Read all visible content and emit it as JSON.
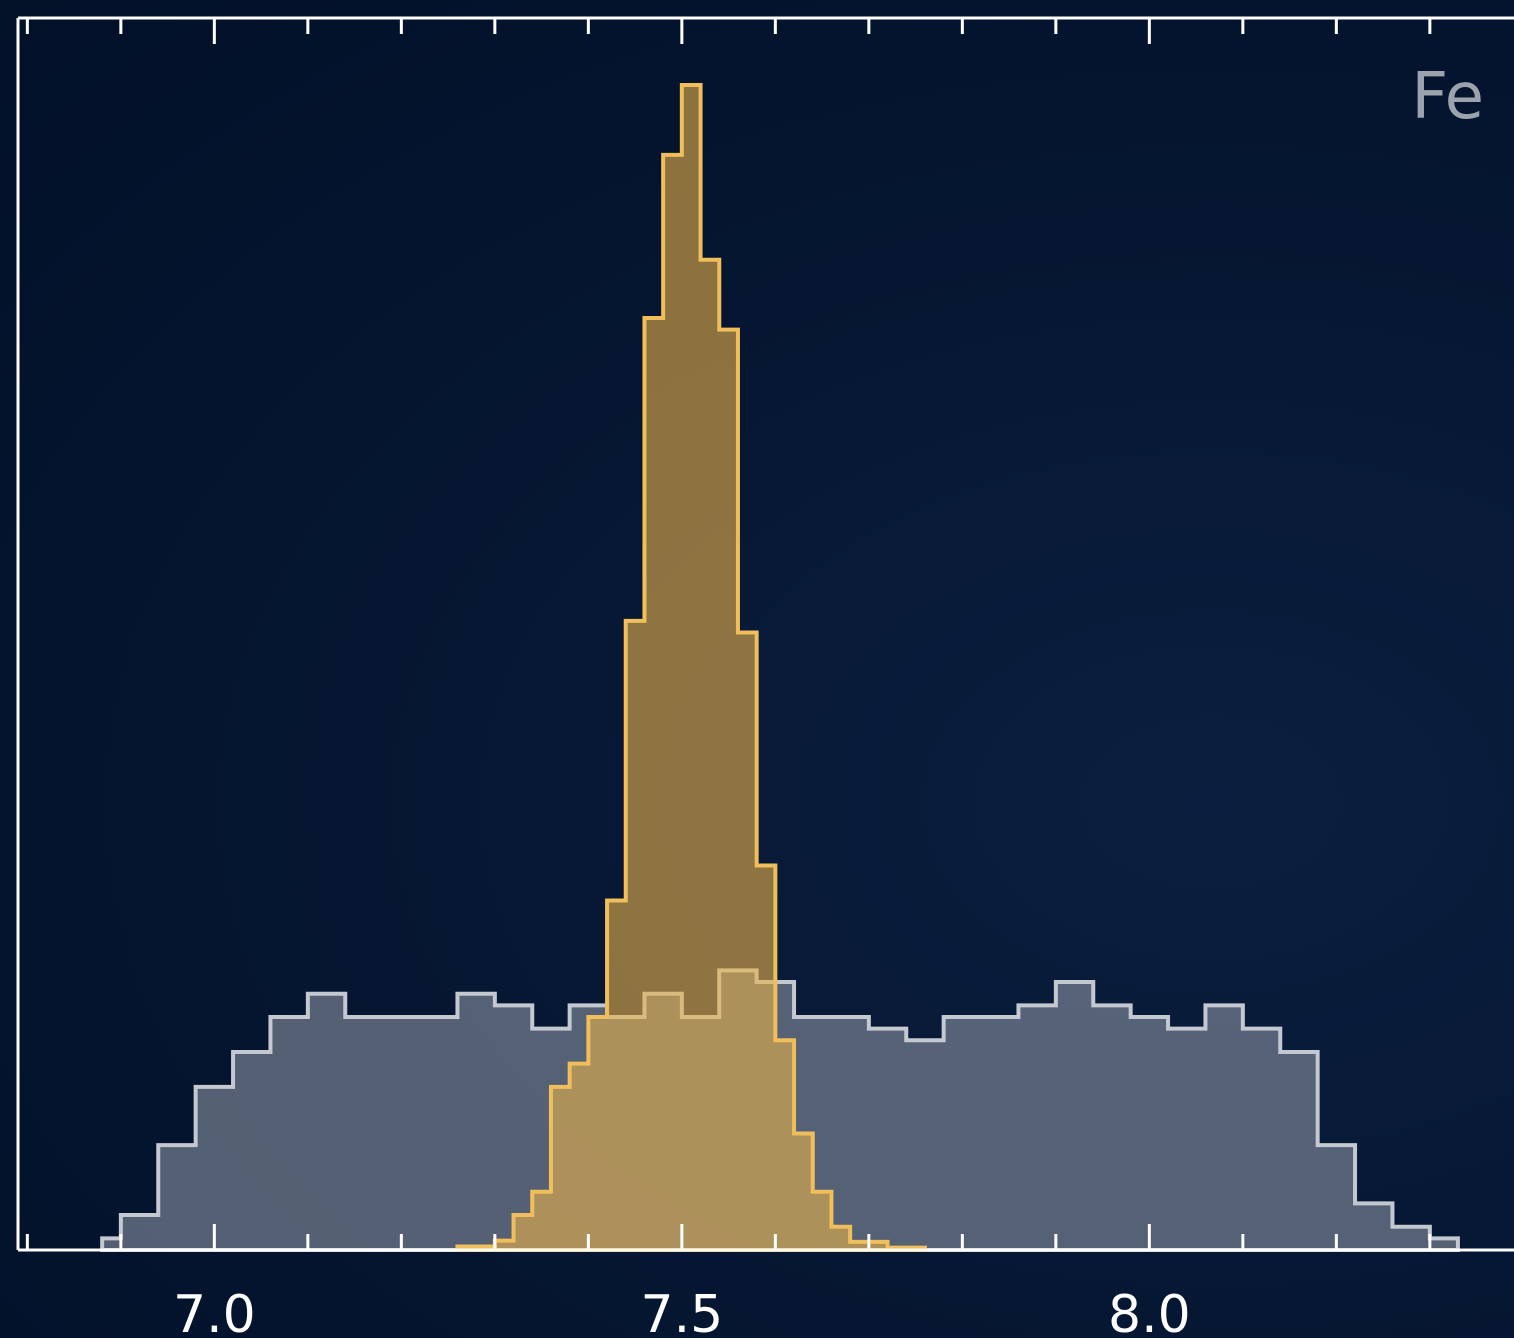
{
  "chart_data": {
    "type": "histogram",
    "title": "",
    "xlabel": "",
    "ylabel": "",
    "annotation": "Fe",
    "x_ticks": [
      "7.0",
      "7.5",
      "8.0"
    ],
    "xlim": [
      6.79,
      8.39
    ],
    "ylim": [
      0,
      1.0
    ],
    "grid": false,
    "legend": "none",
    "series": [
      {
        "fill_color": "#8a92a1",
        "edge_color": "#c4c8d0",
        "bin_edges": [
          6.88,
          6.9,
          6.94,
          6.98,
          7.02,
          7.06,
          7.1,
          7.14,
          7.18,
          7.22,
          7.26,
          7.3,
          7.34,
          7.38,
          7.42,
          7.46,
          7.5,
          7.54,
          7.58,
          7.62,
          7.66,
          7.7,
          7.74,
          7.78,
          7.82,
          7.86,
          7.9,
          7.94,
          7.98,
          8.02,
          8.06,
          8.1,
          8.14,
          8.18,
          8.22,
          8.26,
          8.3,
          8.33
        ],
        "counts": [
          0.01,
          0.03,
          0.09,
          0.14,
          0.17,
          0.2,
          0.22,
          0.2,
          0.2,
          0.2,
          0.22,
          0.21,
          0.19,
          0.21,
          0.2,
          0.22,
          0.2,
          0.24,
          0.23,
          0.2,
          0.2,
          0.19,
          0.18,
          0.2,
          0.2,
          0.21,
          0.23,
          0.21,
          0.2,
          0.19,
          0.21,
          0.19,
          0.17,
          0.09,
          0.04,
          0.02,
          0.01
        ]
      },
      {
        "fill_color": "#e8b04a",
        "edge_color": "#f0be5a",
        "bin_edges": [
          7.26,
          7.3,
          7.32,
          7.34,
          7.36,
          7.38,
          7.4,
          7.42,
          7.44,
          7.46,
          7.48,
          7.5,
          7.52,
          7.54,
          7.56,
          7.58,
          7.6,
          7.62,
          7.64,
          7.66,
          7.68,
          7.72,
          7.76
        ],
        "counts": [
          0.003,
          0.008,
          0.03,
          0.05,
          0.14,
          0.16,
          0.2,
          0.3,
          0.54,
          0.8,
          0.94,
          1.0,
          0.85,
          0.79,
          0.53,
          0.33,
          0.18,
          0.1,
          0.05,
          0.02,
          0.007,
          0.002
        ]
      }
    ]
  }
}
